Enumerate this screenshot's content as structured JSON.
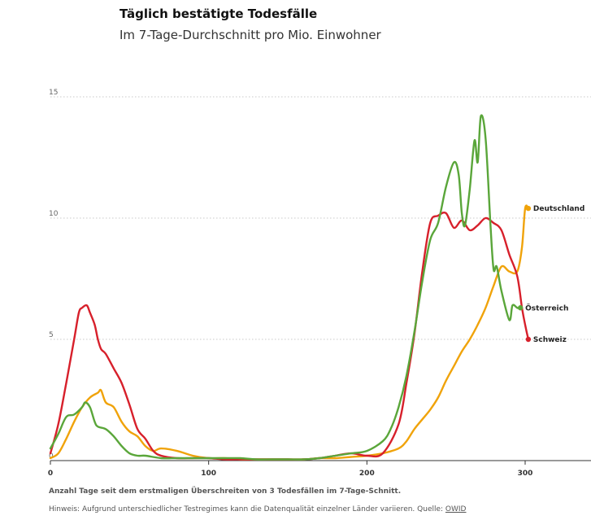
{
  "header": {
    "title": "Täglich bestätigte Todesfälle",
    "subtitle": "Im 7-Tage-Durchschnitt pro Mio. Einwohner"
  },
  "footer": {
    "xlabel": "Anzahl Tage seit dem erstmaligen Überschreiten von 3 Todesfällen im 7-Tage-Schnitt.",
    "note": "Hinweis: Aufgrund unterschiedlicher Testregimes kann die Datenqualität einzelner Länder variieren. Quelle: ",
    "source_label": "OWID"
  },
  "chart_data": {
    "type": "line",
    "title": "Täglich bestätigte Todesfälle",
    "subtitle": "Im 7-Tage-Durchschnitt pro Mio. Einwohner",
    "xlabel": "Anzahl Tage seit dem erstmaligen Überschreiten von 3 Todesfällen im 7-Tage-Schnitt.",
    "ylabel": "",
    "xlim": [
      0,
      340
    ],
    "ylim": [
      0,
      15
    ],
    "xticks": [
      0,
      100,
      200,
      300
    ],
    "yticks": [
      0,
      5,
      10,
      15
    ],
    "grid": "horizontal dotted",
    "legend": "direct labels at line ends",
    "series": [
      {
        "name": "Deutschland",
        "color": "#f0a30a",
        "x": [
          0,
          5,
          10,
          15,
          20,
          25,
          30,
          32,
          35,
          40,
          45,
          50,
          55,
          60,
          65,
          70,
          80,
          90,
          100,
          110,
          120,
          130,
          140,
          150,
          160,
          170,
          180,
          190,
          200,
          210,
          220,
          225,
          230,
          235,
          240,
          245,
          250,
          255,
          260,
          265,
          270,
          275,
          280,
          285,
          290,
          295,
          298,
          300,
          302
        ],
        "y": [
          0.1,
          0.3,
          0.9,
          1.6,
          2.2,
          2.6,
          2.8,
          2.9,
          2.4,
          2.2,
          1.6,
          1.2,
          1.0,
          0.6,
          0.4,
          0.5,
          0.4,
          0.2,
          0.1,
          0.1,
          0.05,
          0.05,
          0.05,
          0.05,
          0.05,
          0.1,
          0.1,
          0.15,
          0.2,
          0.3,
          0.5,
          0.8,
          1.3,
          1.7,
          2.1,
          2.6,
          3.3,
          3.9,
          4.5,
          5.0,
          5.6,
          6.3,
          7.2,
          8.0,
          7.8,
          7.8,
          8.8,
          10.4,
          10.4
        ]
      },
      {
        "name": "Österreich",
        "color": "#5aa63a",
        "x": [
          0,
          5,
          10,
          15,
          20,
          22,
          25,
          28,
          30,
          35,
          40,
          45,
          50,
          55,
          60,
          70,
          80,
          90,
          100,
          110,
          120,
          130,
          140,
          150,
          160,
          170,
          180,
          190,
          200,
          210,
          215,
          220,
          225,
          230,
          235,
          240,
          245,
          250,
          255,
          258,
          260,
          262,
          265,
          268,
          270,
          272,
          275,
          278,
          280,
          282,
          285,
          290,
          292,
          295,
          297
        ],
        "y": [
          0.5,
          1.1,
          1.8,
          1.9,
          2.2,
          2.4,
          2.2,
          1.6,
          1.4,
          1.3,
          1.0,
          0.6,
          0.3,
          0.2,
          0.2,
          0.1,
          0.1,
          0.1,
          0.1,
          0.1,
          0.1,
          0.05,
          0.05,
          0.05,
          0.05,
          0.1,
          0.2,
          0.3,
          0.4,
          0.8,
          1.3,
          2.2,
          3.5,
          5.3,
          7.4,
          9.1,
          9.8,
          11.3,
          12.3,
          11.8,
          10.2,
          9.7,
          11.2,
          13.2,
          12.3,
          14.2,
          13.3,
          9.8,
          7.9,
          8.0,
          7.0,
          5.8,
          6.4,
          6.3,
          6.3
        ]
      },
      {
        "name": "Schweiz",
        "color": "#d7202b",
        "x": [
          0,
          5,
          10,
          15,
          18,
          20,
          23,
          25,
          28,
          30,
          32,
          35,
          40,
          45,
          50,
          55,
          60,
          65,
          70,
          80,
          90,
          100,
          110,
          120,
          130,
          140,
          150,
          160,
          170,
          180,
          190,
          200,
          210,
          220,
          225,
          230,
          235,
          240,
          245,
          250,
          255,
          260,
          265,
          270,
          275,
          280,
          285,
          290,
          295,
          298,
          300,
          302
        ],
        "y": [
          0.3,
          1.5,
          3.2,
          5.0,
          6.1,
          6.3,
          6.4,
          6.1,
          5.6,
          5.0,
          4.6,
          4.4,
          3.8,
          3.2,
          2.3,
          1.3,
          0.9,
          0.4,
          0.2,
          0.1,
          0.1,
          0.1,
          0.05,
          0.05,
          0.05,
          0.05,
          0.05,
          0.05,
          0.1,
          0.2,
          0.3,
          0.2,
          0.3,
          1.5,
          3.2,
          5.2,
          7.8,
          9.8,
          10.1,
          10.2,
          9.6,
          9.9,
          9.5,
          9.7,
          10.0,
          9.8,
          9.5,
          8.5,
          7.6,
          6.3,
          5.6,
          5.0
        ]
      }
    ],
    "end_labels": [
      "Deutschland",
      "Österreich",
      "Schweiz"
    ]
  }
}
